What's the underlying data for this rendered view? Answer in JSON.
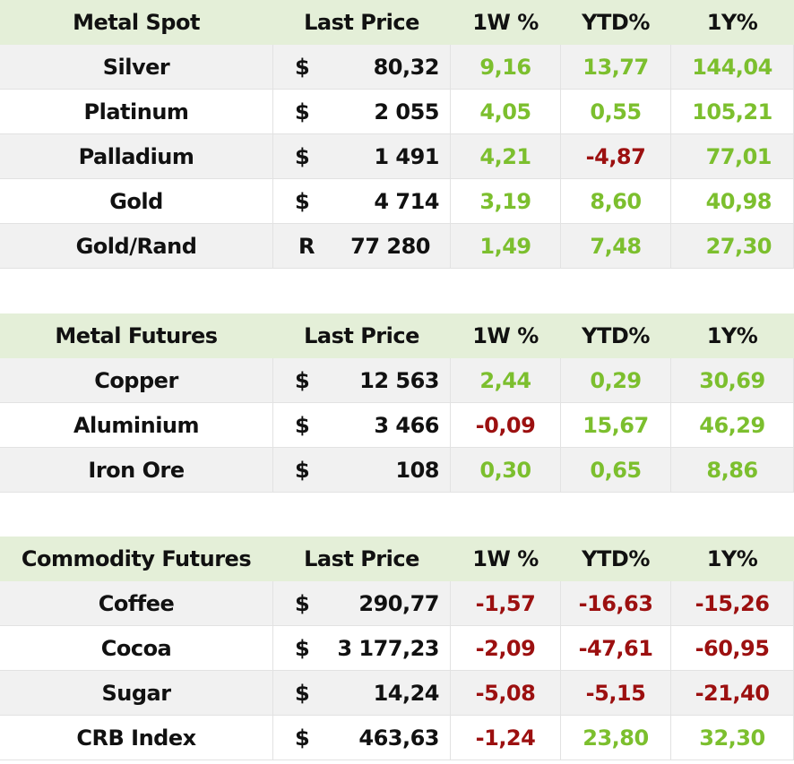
{
  "colors": {
    "header_bg": "#e4efd8",
    "positive": "#7cbf2e",
    "negative": "#9c1010",
    "stripe": "#f1f1f1"
  },
  "sections": [
    {
      "header": {
        "name": "Metal Spot",
        "price": "Last Price",
        "w1": "1W %",
        "ytd": "YTD%",
        "y1": "1Y%"
      },
      "rows": [
        {
          "name": "Silver",
          "cur": "$",
          "price": "80,32",
          "w1": "9,16",
          "ytd": "13,77",
          "y1": "144,04"
        },
        {
          "name": "Platinum",
          "cur": "$",
          "price": "2 055",
          "w1": "4,05",
          "ytd": "0,55",
          "y1": "105,21"
        },
        {
          "name": "Palladium",
          "cur": "$",
          "price": "1 491",
          "w1": "4,21",
          "ytd": "-4,87",
          "y1": "77,01"
        },
        {
          "name": "Gold",
          "cur": "$",
          "price": "4 714",
          "w1": "3,19",
          "ytd": "8,60",
          "y1": "40,98"
        },
        {
          "name": "Gold/Rand",
          "cur": "R",
          "price": "77 280",
          "w1": "1,49",
          "ytd": "7,48",
          "y1": "27,30"
        }
      ]
    },
    {
      "header": {
        "name": "Metal Futures",
        "price": "Last Price",
        "w1": "1W %",
        "ytd": "YTD%",
        "y1": "1Y%"
      },
      "rows": [
        {
          "name": "Copper",
          "cur": "$",
          "price": "12 563",
          "w1": "2,44",
          "ytd": "0,29",
          "y1": "30,69"
        },
        {
          "name": "Aluminium",
          "cur": "$",
          "price": "3 466",
          "w1": "-0,09",
          "ytd": "15,67",
          "y1": "46,29"
        },
        {
          "name": "Iron Ore",
          "cur": "$",
          "price": "108",
          "w1": "0,30",
          "ytd": "0,65",
          "y1": "8,86"
        }
      ]
    },
    {
      "header": {
        "name": "Commodity Futures",
        "price": "Last Price",
        "w1": "1W %",
        "ytd": "YTD%",
        "y1": "1Y%"
      },
      "rows": [
        {
          "name": "Coffee",
          "cur": "$",
          "price": "290,77",
          "w1": "-1,57",
          "ytd": "-16,63",
          "y1": "-15,26"
        },
        {
          "name": "Cocoa",
          "cur": "$",
          "price": "3 177,23",
          "w1": "-2,09",
          "ytd": "-47,61",
          "y1": "-60,95"
        },
        {
          "name": "Sugar",
          "cur": "$",
          "price": "14,24",
          "w1": "-5,08",
          "ytd": "-5,15",
          "y1": "-21,40"
        },
        {
          "name": "CRB Index",
          "cur": "$",
          "price": "463,63",
          "w1": "-1,24",
          "ytd": "23,80",
          "y1": "32,30"
        }
      ]
    }
  ]
}
